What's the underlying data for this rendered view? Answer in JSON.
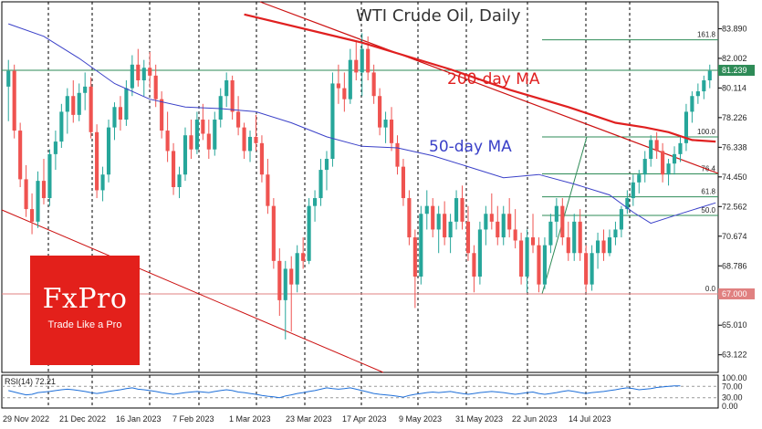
{
  "chart_data": {
    "type": "candlestick",
    "title": "WTI Crude Oil, Daily",
    "colors": {
      "up": "#26a69a",
      "down": "#ef5350",
      "ma200": "#e02020",
      "ma50": "#3a40c8",
      "fib": "#2e8b57",
      "trend": "#cc1111",
      "price_line": "#2e8b57",
      "support_line": "#e08080",
      "price_badge_bg": "#2e8b57",
      "support_badge_bg": "#e08080"
    },
    "x_labels": [
      "29 Nov 2022",
      "21 Dec 2022",
      "16 Jan 2023",
      "7 Feb 2023",
      "1 Mar 2023",
      "23 Mar 2023",
      "17 Apr 2023",
      "9 May 2023",
      "31 May 2023",
      "22 Jun 2023",
      "14 Jul 2023"
    ],
    "y_ticks": [
      "83.890",
      "82.002",
      "80.114",
      "78.226",
      "76.338",
      "74.450",
      "72.562",
      "70.674",
      "68.786",
      "65.010",
      "63.122"
    ],
    "y_tick_values": [
      83.89,
      82.002,
      80.114,
      78.226,
      76.338,
      74.45,
      72.562,
      70.674,
      68.786,
      65.01,
      63.122
    ],
    "ylim": [
      62.0,
      85.6
    ],
    "current_price": "81.239",
    "current_price_value": 81.239,
    "support_level": "67.000",
    "support_level_value": 67.0,
    "fibonacci": {
      "low": 67.0,
      "high": 77.0,
      "levels": [
        {
          "label": "0.0",
          "value": 67.0
        },
        {
          "label": "50.0",
          "value": 72.0
        },
        {
          "label": "61.8",
          "value": 73.18
        },
        {
          "label": "76.4",
          "value": 74.64
        },
        {
          "label": "100.0",
          "value": 77.0
        },
        {
          "label": "161.8",
          "value": 83.18
        }
      ]
    },
    "annotations": {
      "ma200": "200-day MA",
      "ma50": "50-day MA"
    },
    "candles": [
      {
        "o": 80.2,
        "h": 81.9,
        "l": 78.0,
        "c": 81.2
      },
      {
        "o": 81.2,
        "h": 81.6,
        "l": 76.9,
        "c": 77.4
      },
      {
        "o": 77.4,
        "h": 77.9,
        "l": 73.8,
        "c": 74.3
      },
      {
        "o": 74.3,
        "h": 75.2,
        "l": 71.9,
        "c": 72.4
      },
      {
        "o": 72.4,
        "h": 73.4,
        "l": 70.8,
        "c": 71.6
      },
      {
        "o": 71.6,
        "h": 74.8,
        "l": 71.2,
        "c": 74.2
      },
      {
        "o": 74.2,
        "h": 75.6,
        "l": 72.7,
        "c": 73.1
      },
      {
        "o": 73.1,
        "h": 76.2,
        "l": 72.6,
        "c": 75.9
      },
      {
        "o": 75.9,
        "h": 77.4,
        "l": 74.9,
        "c": 76.7
      },
      {
        "o": 76.7,
        "h": 79.1,
        "l": 76.3,
        "c": 78.6
      },
      {
        "o": 78.6,
        "h": 80.1,
        "l": 77.2,
        "c": 79.6
      },
      {
        "o": 79.6,
        "h": 80.6,
        "l": 77.9,
        "c": 78.4
      },
      {
        "o": 78.4,
        "h": 80.4,
        "l": 78.0,
        "c": 79.8
      },
      {
        "o": 79.8,
        "h": 81.1,
        "l": 78.7,
        "c": 80.2
      },
      {
        "o": 80.2,
        "h": 80.8,
        "l": 76.9,
        "c": 77.3
      },
      {
        "o": 77.3,
        "h": 77.8,
        "l": 73.1,
        "c": 73.6
      },
      {
        "o": 73.6,
        "h": 75.1,
        "l": 72.9,
        "c": 74.6
      },
      {
        "o": 74.6,
        "h": 78.1,
        "l": 74.1,
        "c": 77.6
      },
      {
        "o": 77.6,
        "h": 79.2,
        "l": 76.8,
        "c": 78.9
      },
      {
        "o": 78.9,
        "h": 79.6,
        "l": 77.4,
        "c": 78.1
      },
      {
        "o": 78.1,
        "h": 80.6,
        "l": 77.7,
        "c": 80.1
      },
      {
        "o": 80.1,
        "h": 82.2,
        "l": 79.6,
        "c": 81.6
      },
      {
        "o": 81.6,
        "h": 82.6,
        "l": 80.2,
        "c": 80.6
      },
      {
        "o": 80.6,
        "h": 81.9,
        "l": 79.6,
        "c": 81.4
      },
      {
        "o": 81.4,
        "h": 82.4,
        "l": 80.1,
        "c": 80.9
      },
      {
        "o": 80.9,
        "h": 81.6,
        "l": 78.9,
        "c": 79.4
      },
      {
        "o": 79.4,
        "h": 79.9,
        "l": 76.9,
        "c": 77.4
      },
      {
        "o": 77.4,
        "h": 78.6,
        "l": 75.4,
        "c": 76.1
      },
      {
        "o": 76.1,
        "h": 76.6,
        "l": 73.3,
        "c": 73.8
      },
      {
        "o": 73.8,
        "h": 75.1,
        "l": 73.1,
        "c": 74.6
      },
      {
        "o": 74.6,
        "h": 77.6,
        "l": 74.2,
        "c": 77.1
      },
      {
        "o": 77.1,
        "h": 78.1,
        "l": 75.6,
        "c": 76.2
      },
      {
        "o": 76.2,
        "h": 78.6,
        "l": 75.9,
        "c": 78.1
      },
      {
        "o": 78.1,
        "h": 79.1,
        "l": 76.8,
        "c": 77.2
      },
      {
        "o": 77.2,
        "h": 78.1,
        "l": 75.6,
        "c": 76.2
      },
      {
        "o": 76.2,
        "h": 78.6,
        "l": 75.8,
        "c": 78.1
      },
      {
        "o": 78.1,
        "h": 80.1,
        "l": 77.6,
        "c": 79.6
      },
      {
        "o": 79.6,
        "h": 81.1,
        "l": 78.9,
        "c": 80.6
      },
      {
        "o": 80.6,
        "h": 80.9,
        "l": 78.1,
        "c": 78.6
      },
      {
        "o": 78.6,
        "h": 79.6,
        "l": 77.1,
        "c": 77.6
      },
      {
        "o": 77.6,
        "h": 77.9,
        "l": 75.6,
        "c": 76.1
      },
      {
        "o": 76.1,
        "h": 77.4,
        "l": 75.4,
        "c": 77.0
      },
      {
        "o": 77.0,
        "h": 78.4,
        "l": 76.1,
        "c": 76.6
      },
      {
        "o": 76.6,
        "h": 77.1,
        "l": 74.1,
        "c": 74.6
      },
      {
        "o": 74.6,
        "h": 75.6,
        "l": 72.1,
        "c": 72.6
      },
      {
        "o": 72.6,
        "h": 73.1,
        "l": 68.6,
        "c": 69.1
      },
      {
        "o": 69.1,
        "h": 69.9,
        "l": 65.6,
        "c": 66.6
      },
      {
        "o": 66.6,
        "h": 69.1,
        "l": 64.1,
        "c": 68.6
      },
      {
        "o": 68.6,
        "h": 69.4,
        "l": 64.6,
        "c": 67.6
      },
      {
        "o": 67.6,
        "h": 70.1,
        "l": 67.1,
        "c": 69.6
      },
      {
        "o": 69.6,
        "h": 70.6,
        "l": 68.6,
        "c": 69.1
      },
      {
        "o": 69.1,
        "h": 73.1,
        "l": 68.9,
        "c": 72.6
      },
      {
        "o": 72.6,
        "h": 73.6,
        "l": 71.6,
        "c": 73.1
      },
      {
        "o": 73.1,
        "h": 75.6,
        "l": 72.6,
        "c": 74.9
      },
      {
        "o": 74.9,
        "h": 76.1,
        "l": 73.6,
        "c": 75.6
      },
      {
        "o": 75.6,
        "h": 81.1,
        "l": 75.1,
        "c": 80.4
      },
      {
        "o": 80.4,
        "h": 81.6,
        "l": 79.1,
        "c": 80.1
      },
      {
        "o": 80.1,
        "h": 81.1,
        "l": 78.6,
        "c": 79.4
      },
      {
        "o": 79.4,
        "h": 82.6,
        "l": 79.1,
        "c": 81.9
      },
      {
        "o": 81.9,
        "h": 83.1,
        "l": 80.6,
        "c": 81.1
      },
      {
        "o": 81.1,
        "h": 83.6,
        "l": 79.6,
        "c": 82.6
      },
      {
        "o": 82.6,
        "h": 83.4,
        "l": 80.6,
        "c": 81.1
      },
      {
        "o": 81.1,
        "h": 81.6,
        "l": 79.1,
        "c": 79.6
      },
      {
        "o": 79.6,
        "h": 80.1,
        "l": 77.1,
        "c": 77.6
      },
      {
        "o": 77.6,
        "h": 78.6,
        "l": 76.6,
        "c": 78.1
      },
      {
        "o": 78.1,
        "h": 78.9,
        "l": 76.1,
        "c": 76.6
      },
      {
        "o": 76.6,
        "h": 77.1,
        "l": 74.6,
        "c": 75.1
      },
      {
        "o": 75.1,
        "h": 75.6,
        "l": 72.6,
        "c": 73.1
      },
      {
        "o": 73.1,
        "h": 73.6,
        "l": 70.1,
        "c": 70.6
      },
      {
        "o": 70.6,
        "h": 71.1,
        "l": 66.1,
        "c": 68.1
      },
      {
        "o": 68.1,
        "h": 72.6,
        "l": 67.6,
        "c": 72.1
      },
      {
        "o": 72.1,
        "h": 73.6,
        "l": 71.1,
        "c": 72.6
      },
      {
        "o": 72.6,
        "h": 73.1,
        "l": 70.6,
        "c": 71.1
      },
      {
        "o": 71.1,
        "h": 72.6,
        "l": 69.6,
        "c": 72.1
      },
      {
        "o": 72.1,
        "h": 72.9,
        "l": 70.1,
        "c": 70.6
      },
      {
        "o": 70.6,
        "h": 72.1,
        "l": 69.6,
        "c": 71.6
      },
      {
        "o": 71.6,
        "h": 73.6,
        "l": 71.1,
        "c": 73.1
      },
      {
        "o": 73.1,
        "h": 73.9,
        "l": 71.1,
        "c": 71.6
      },
      {
        "o": 71.6,
        "h": 72.6,
        "l": 69.1,
        "c": 69.6
      },
      {
        "o": 69.6,
        "h": 70.1,
        "l": 67.1,
        "c": 68.1
      },
      {
        "o": 68.1,
        "h": 71.6,
        "l": 67.6,
        "c": 71.1
      },
      {
        "o": 71.1,
        "h": 72.6,
        "l": 70.1,
        "c": 72.1
      },
      {
        "o": 72.1,
        "h": 73.4,
        "l": 71.1,
        "c": 71.6
      },
      {
        "o": 71.6,
        "h": 72.6,
        "l": 70.1,
        "c": 70.6
      },
      {
        "o": 70.6,
        "h": 72.6,
        "l": 70.1,
        "c": 72.1
      },
      {
        "o": 72.1,
        "h": 73.1,
        "l": 70.6,
        "c": 71.1
      },
      {
        "o": 71.1,
        "h": 72.4,
        "l": 69.9,
        "c": 70.4
      },
      {
        "o": 70.4,
        "h": 70.9,
        "l": 67.6,
        "c": 68.1
      },
      {
        "o": 68.1,
        "h": 71.1,
        "l": 67.1,
        "c": 70.6
      },
      {
        "o": 70.6,
        "h": 72.1,
        "l": 69.6,
        "c": 70.1
      },
      {
        "o": 70.1,
        "h": 70.6,
        "l": 67.1,
        "c": 67.6
      },
      {
        "o": 67.6,
        "h": 70.6,
        "l": 67.3,
        "c": 70.1
      },
      {
        "o": 70.1,
        "h": 72.1,
        "l": 69.6,
        "c": 71.6
      },
      {
        "o": 71.6,
        "h": 73.1,
        "l": 70.6,
        "c": 72.6
      },
      {
        "o": 72.6,
        "h": 73.1,
        "l": 70.1,
        "c": 70.6
      },
      {
        "o": 70.6,
        "h": 71.6,
        "l": 69.1,
        "c": 69.6
      },
      {
        "o": 69.6,
        "h": 72.1,
        "l": 69.1,
        "c": 71.6
      },
      {
        "o": 71.6,
        "h": 72.4,
        "l": 69.1,
        "c": 69.6
      },
      {
        "o": 69.6,
        "h": 70.1,
        "l": 67.1,
        "c": 67.6
      },
      {
        "o": 67.6,
        "h": 70.1,
        "l": 67.2,
        "c": 69.6
      },
      {
        "o": 69.6,
        "h": 70.9,
        "l": 68.6,
        "c": 70.4
      },
      {
        "o": 70.4,
        "h": 71.1,
        "l": 69.1,
        "c": 69.6
      },
      {
        "o": 69.6,
        "h": 71.1,
        "l": 69.4,
        "c": 70.6
      },
      {
        "o": 70.6,
        "h": 71.6,
        "l": 70.1,
        "c": 71.1
      },
      {
        "o": 71.1,
        "h": 72.6,
        "l": 70.6,
        "c": 72.4
      },
      {
        "o": 72.4,
        "h": 73.6,
        "l": 72.1,
        "c": 73.1
      },
      {
        "o": 73.1,
        "h": 74.6,
        "l": 72.6,
        "c": 74.1
      },
      {
        "o": 74.1,
        "h": 74.9,
        "l": 73.4,
        "c": 74.6
      },
      {
        "o": 74.6,
        "h": 76.1,
        "l": 74.1,
        "c": 75.6
      },
      {
        "o": 75.6,
        "h": 77.1,
        "l": 75.1,
        "c": 76.8
      },
      {
        "o": 76.8,
        "h": 77.3,
        "l": 75.6,
        "c": 76.1
      },
      {
        "o": 76.1,
        "h": 76.6,
        "l": 74.1,
        "c": 74.6
      },
      {
        "o": 74.6,
        "h": 75.6,
        "l": 73.9,
        "c": 75.3
      },
      {
        "o": 75.3,
        "h": 76.4,
        "l": 74.6,
        "c": 75.9
      },
      {
        "o": 75.9,
        "h": 77.1,
        "l": 75.4,
        "c": 76.6
      },
      {
        "o": 76.6,
        "h": 79.1,
        "l": 76.1,
        "c": 78.6
      },
      {
        "o": 78.6,
        "h": 79.9,
        "l": 77.9,
        "c": 79.6
      },
      {
        "o": 79.6,
        "h": 80.4,
        "l": 79.1,
        "c": 79.9
      },
      {
        "o": 79.9,
        "h": 80.9,
        "l": 79.4,
        "c": 80.6
      },
      {
        "o": 80.6,
        "h": 81.6,
        "l": 80.1,
        "c": 81.2
      }
    ],
    "ma50": [
      [
        0,
        84.2
      ],
      [
        6,
        83.4
      ],
      [
        12,
        82.0
      ],
      [
        18,
        80.4
      ],
      [
        24,
        79.4
      ],
      [
        30,
        78.9
      ],
      [
        36,
        78.8
      ],
      [
        42,
        78.6
      ],
      [
        48,
        77.9
      ],
      [
        54,
        77.0
      ],
      [
        60,
        76.4
      ],
      [
        66,
        76.3
      ],
      [
        72,
        75.8
      ],
      [
        78,
        75.1
      ],
      [
        84,
        74.4
      ],
      [
        90,
        74.6
      ],
      [
        96,
        74.0
      ],
      [
        102,
        73.3
      ],
      [
        106,
        72.2
      ],
      [
        109,
        71.5
      ],
      [
        114,
        72.1
      ],
      [
        120,
        72.8
      ]
    ],
    "ma200": [
      [
        40,
        84.8
      ],
      [
        60,
        83.0
      ],
      [
        75,
        81.3
      ],
      [
        85,
        80.0
      ],
      [
        95,
        78.9
      ],
      [
        103,
        77.9
      ],
      [
        108,
        77.6
      ],
      [
        112,
        77.3
      ],
      [
        116,
        76.8
      ],
      [
        120,
        76.7
      ]
    ],
    "rsi": {
      "label": "RSI(14) 72.21",
      "ticks": [
        "100.00",
        "70.00",
        "30.00",
        "0.00"
      ],
      "tick_values": [
        100,
        70,
        30,
        0
      ],
      "values": [
        55,
        50,
        45,
        40,
        42,
        48,
        50,
        52,
        55,
        58,
        60,
        58,
        55,
        52,
        48,
        45,
        48,
        52,
        55,
        58,
        62,
        65,
        60,
        58,
        55,
        52,
        48,
        45,
        42,
        45,
        48,
        50,
        52,
        50,
        48,
        52,
        55,
        58,
        55,
        50,
        48,
        45,
        42,
        38,
        35,
        33,
        30,
        36,
        40,
        45,
        48,
        52,
        55,
        60,
        65,
        62,
        60,
        62,
        65,
        60,
        55,
        50,
        45,
        42,
        40,
        38,
        35,
        32,
        38,
        42,
        45,
        48,
        50,
        48,
        50,
        52,
        48,
        45,
        42,
        45,
        48,
        50,
        52,
        50,
        48,
        45,
        42,
        45,
        48,
        50,
        45,
        42,
        45,
        48,
        52,
        55,
        52,
        48,
        45,
        48,
        50,
        52,
        55,
        58,
        62,
        65,
        62,
        58,
        60,
        62,
        66,
        68,
        70,
        72,
        72
      ]
    }
  },
  "branding": {
    "logo": "FxPro",
    "tagline": "Trade Like a Pro"
  }
}
